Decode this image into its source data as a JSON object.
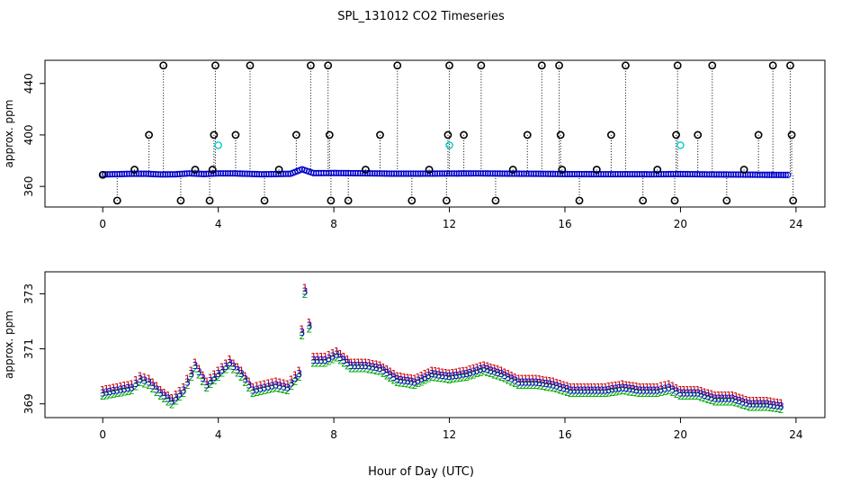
{
  "title": "SPL_131012  CO2 Timeseries",
  "xlabel": "Hour of Day (UTC)",
  "chart_data": [
    {
      "type": "scatter",
      "ylabel": "approx. ppm",
      "xlim": [
        -2,
        25
      ],
      "ylim": [
        344,
        458
      ],
      "xticks": [
        0,
        4,
        8,
        12,
        16,
        20,
        24
      ],
      "yticks": [
        360,
        400,
        440
      ],
      "series": [
        {
          "name": "black-circles",
          "color": "#000000",
          "x": [
            0,
            0.5,
            1.1,
            1.6,
            2.1,
            2.7,
            3.2,
            3.7,
            3.8,
            3.85,
            3.9,
            4.6,
            5.1,
            5.6,
            6.1,
            6.7,
            7.2,
            7.8,
            7.85,
            7.9,
            8.5,
            9.1,
            9.6,
            10.2,
            10.7,
            11.3,
            11.9,
            11.95,
            12.0,
            12.5,
            13.1,
            13.6,
            14.2,
            14.7,
            15.2,
            15.8,
            15.85,
            15.9,
            16.5,
            17.1,
            17.6,
            18.1,
            18.7,
            19.2,
            19.8,
            19.85,
            19.9,
            20.6,
            21.1,
            21.6,
            22.2,
            22.7,
            23.2,
            23.8,
            23.85,
            23.9
          ],
          "y": [
            369,
            349,
            373,
            400,
            454,
            349,
            373,
            349,
            373,
            400,
            454,
            400,
            454,
            349,
            373,
            400,
            454,
            454,
            400,
            349,
            349,
            373,
            400,
            454,
            349,
            373,
            349,
            400,
            454,
            400,
            454,
            349,
            373,
            400,
            454,
            454,
            400,
            373,
            349,
            373,
            400,
            454,
            349,
            373,
            349,
            400,
            454,
            400,
            454,
            349,
            373,
            400,
            454,
            454,
            400,
            349
          ]
        },
        {
          "name": "cyan-circles",
          "color": "#00cccc",
          "x": [
            4.0,
            12.0,
            20.0
          ],
          "y": [
            392,
            392,
            392
          ]
        },
        {
          "name": "blue-baseline",
          "color": "#0000cc",
          "x": [
            0,
            0.5,
            1,
            1.5,
            2,
            2.5,
            3,
            3.5,
            4,
            4.5,
            5,
            5.5,
            6,
            6.5,
            6.9,
            7.3,
            8,
            9,
            10,
            11,
            12,
            13,
            14,
            15,
            16,
            17,
            18,
            19,
            20,
            21,
            22,
            23,
            23.8
          ],
          "y": [
            369.3,
            369.5,
            369.8,
            369.8,
            369.3,
            369.4,
            370.1,
            369.6,
            370.1,
            370.1,
            369.8,
            369.4,
            369.6,
            369.8,
            373.3,
            370.3,
            370.4,
            370.2,
            369.9,
            369.9,
            370.0,
            370.1,
            369.9,
            369.8,
            369.6,
            369.5,
            369.5,
            369.4,
            369.6,
            369.3,
            369.2,
            369.0,
            368.9
          ]
        }
      ]
    },
    {
      "type": "scatter",
      "ylabel": "approx. ppm",
      "xlim": [
        -2,
        25
      ],
      "ylim": [
        368.5,
        373.8
      ],
      "xticks": [
        0,
        4,
        8,
        12,
        16,
        20,
        24
      ],
      "yticks": [
        369,
        371,
        373
      ],
      "series": [
        {
          "name": "1",
          "symbol": "1",
          "color": "#cc0000",
          "offset": 0.12,
          "x": [
            0,
            0.5,
            1,
            1.3,
            1.6,
            2,
            2.4,
            2.8,
            3.2,
            3.6,
            4,
            4.4,
            4.8,
            5.2,
            5.6,
            6,
            6.4,
            6.8,
            7.0,
            7.3,
            7.7,
            8.1,
            8.6,
            9.1,
            9.6,
            10.2,
            10.8,
            11.4,
            12,
            12.6,
            13.2,
            13.8,
            14.4,
            15,
            15.6,
            16.2,
            16.8,
            17.4,
            18,
            18.6,
            19.2,
            19.6,
            20,
            20.6,
            21.2,
            21.8,
            22.4,
            23,
            23.6
          ],
          "y": [
            369.4,
            369.5,
            369.6,
            369.9,
            369.8,
            369.4,
            369.1,
            369.5,
            370.4,
            369.7,
            370.1,
            370.5,
            370.1,
            369.5,
            369.6,
            369.7,
            369.6,
            370.1,
            373.1,
            370.6,
            370.6,
            370.8,
            370.4,
            370.4,
            370.3,
            369.9,
            369.8,
            370.1,
            370.0,
            370.1,
            370.3,
            370.1,
            369.8,
            369.8,
            369.7,
            369.5,
            369.5,
            369.5,
            369.6,
            369.5,
            369.5,
            369.6,
            369.4,
            369.4,
            369.2,
            369.2,
            369.0,
            369.0,
            368.9
          ]
        },
        {
          "name": "2",
          "symbol": "2",
          "color": "#00aa00",
          "offset": -0.12,
          "x": [
            0,
            0.5,
            1,
            1.3,
            1.6,
            2,
            2.4,
            2.8,
            3.2,
            3.6,
            4,
            4.4,
            4.8,
            5.2,
            5.6,
            6,
            6.4,
            6.8,
            7.0,
            7.3,
            7.7,
            8.1,
            8.6,
            9.1,
            9.6,
            10.2,
            10.8,
            11.4,
            12,
            12.6,
            13.2,
            13.8,
            14.4,
            15,
            15.6,
            16.2,
            16.8,
            17.4,
            18,
            18.6,
            19.2,
            19.6,
            20,
            20.6,
            21.2,
            21.8,
            22.4,
            23,
            23.6
          ],
          "y": [
            369.4,
            369.5,
            369.6,
            369.9,
            369.8,
            369.4,
            369.1,
            369.5,
            370.4,
            369.7,
            370.1,
            370.5,
            370.1,
            369.5,
            369.6,
            369.7,
            369.6,
            370.1,
            373.1,
            370.6,
            370.6,
            370.8,
            370.4,
            370.4,
            370.3,
            369.9,
            369.8,
            370.1,
            370.0,
            370.1,
            370.3,
            370.1,
            369.8,
            369.8,
            369.7,
            369.5,
            369.5,
            369.5,
            369.6,
            369.5,
            369.5,
            369.6,
            369.4,
            369.4,
            369.2,
            369.2,
            369.0,
            369.0,
            368.9
          ]
        },
        {
          "name": "3",
          "symbol": "3",
          "color": "#0000cc",
          "offset": 0,
          "x": [
            0,
            0.5,
            1,
            1.3,
            1.6,
            2,
            2.4,
            2.8,
            3.2,
            3.6,
            4,
            4.4,
            4.8,
            5.2,
            5.6,
            6,
            6.4,
            6.8,
            7.0,
            7.3,
            7.7,
            8.1,
            8.6,
            9.1,
            9.6,
            10.2,
            10.8,
            11.4,
            12,
            12.6,
            13.2,
            13.8,
            14.4,
            15,
            15.6,
            16.2,
            16.8,
            17.4,
            18,
            18.6,
            19.2,
            19.6,
            20,
            20.6,
            21.2,
            21.8,
            22.4,
            23,
            23.6
          ],
          "y": [
            369.4,
            369.5,
            369.6,
            369.9,
            369.8,
            369.4,
            369.1,
            369.5,
            370.4,
            369.7,
            370.1,
            370.5,
            370.1,
            369.5,
            369.6,
            369.7,
            369.6,
            370.1,
            373.1,
            370.6,
            370.6,
            370.8,
            370.4,
            370.4,
            370.3,
            369.9,
            369.8,
            370.1,
            370.0,
            370.1,
            370.3,
            370.1,
            369.8,
            369.8,
            369.7,
            369.5,
            369.5,
            369.5,
            369.6,
            369.5,
            369.5,
            369.6,
            369.4,
            369.4,
            369.2,
            369.2,
            369.0,
            369.0,
            368.9
          ]
        }
      ]
    }
  ]
}
